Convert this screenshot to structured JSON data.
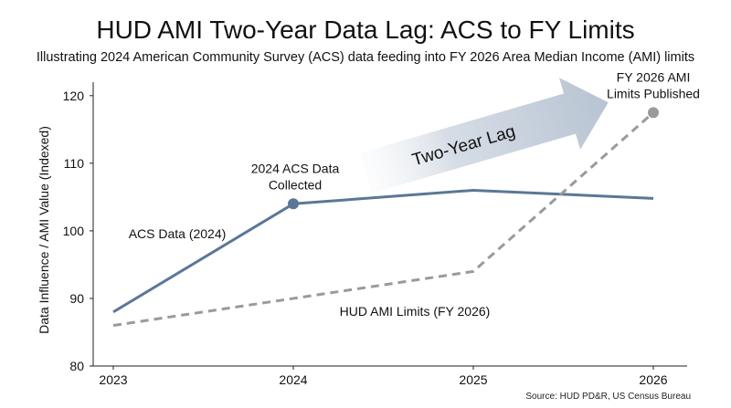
{
  "chart_data": {
    "type": "line",
    "title": "HUD AMI Two-Year Data Lag: ACS to FY Limits",
    "subtitle": "Illustrating 2024 American Community Survey (ACS) data feeding into FY 2026 Area Median Income (AMI) limits",
    "xlabel": "",
    "ylabel": "Data Influence / AMI Value (Indexed)",
    "x": [
      2023,
      2024,
      2025,
      2026
    ],
    "xlim": [
      2023,
      2026
    ],
    "ylim": [
      80,
      122
    ],
    "yticks": [
      80,
      90,
      100,
      110,
      120
    ],
    "grid": false,
    "series": [
      {
        "name": "ACS Data (2024)",
        "values": [
          88,
          104,
          106,
          104.8
        ],
        "color": "#5b7796",
        "style": "solid"
      },
      {
        "name": "HUD AMI Limits (FY 2026)",
        "values": [
          86,
          90,
          94,
          117.5
        ],
        "color": "#9a9a9a",
        "style": "dashed"
      }
    ],
    "markers": [
      {
        "series": 0,
        "x": 2024,
        "y": 104,
        "label": "2024 ACS Data\nCollected"
      },
      {
        "series": 1,
        "x": 2026,
        "y": 117.5,
        "label": "FY 2026 AMI\nLimits Published"
      }
    ],
    "arrow": {
      "label": "Two-Year Lag",
      "from": [
        2024.4,
        108.5
      ],
      "to": [
        2025.75,
        119
      ]
    },
    "source": "Source: HUD PD&R, US Census Bureau"
  }
}
